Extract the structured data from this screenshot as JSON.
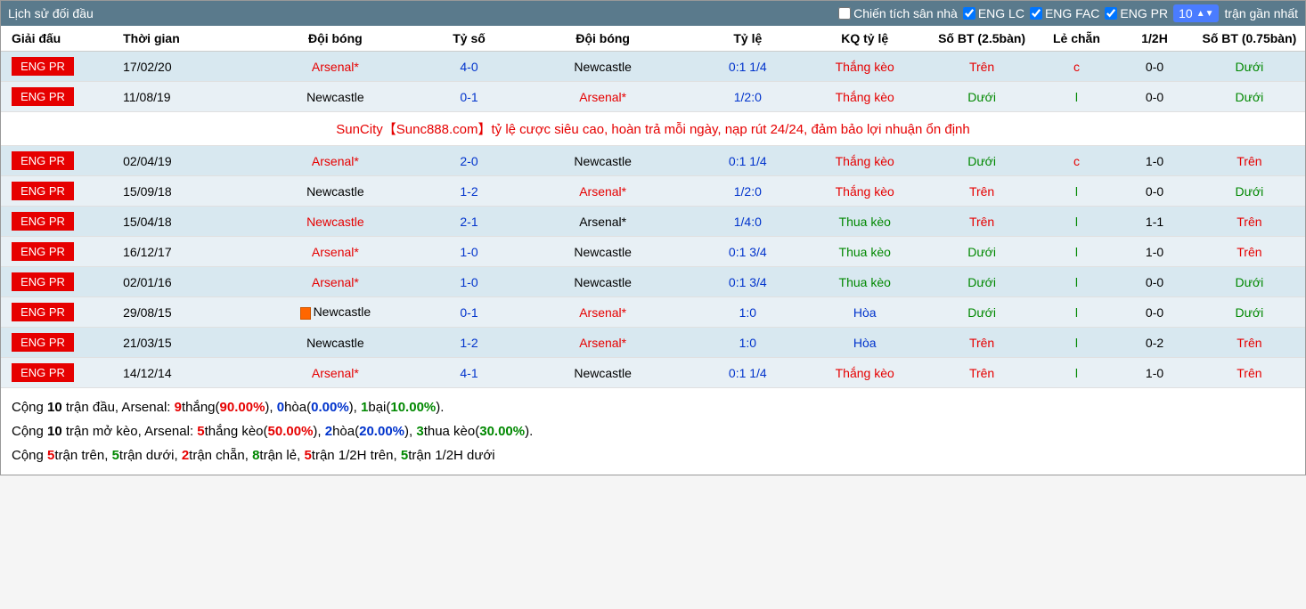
{
  "header": {
    "title": "Lịch sử đối đầu",
    "home_record": "Chiến tích sân nhà",
    "filters": [
      {
        "label": "ENG LC",
        "checked": true
      },
      {
        "label": "ENG FAC",
        "checked": true
      },
      {
        "label": "ENG PR",
        "checked": true
      }
    ],
    "count": "10",
    "count_suffix": "trận gần nhất"
  },
  "columns": [
    "Giải đấu",
    "Thời gian",
    "Đội bóng",
    "Tỷ số",
    "Đội bóng",
    "Tỷ lệ",
    "KQ tỷ lệ",
    "Số BT (2.5bàn)",
    "Lẻ chẵn",
    "1/2H",
    "Số BT (0.75bàn)"
  ],
  "promo": "SunCity【Sunc888.com】tỷ lệ cược siêu cao, hoàn trả mỗi ngày, nạp rút 24/24, đảm bảo lợi nhuận ổn định",
  "rows": [
    {
      "league": "ENG PR",
      "date": "17/02/20",
      "home": "Arsenal*",
      "home_color": "red",
      "score": "4-0",
      "score_color": "blue",
      "away": "Newcastle",
      "away_color": "black",
      "odds": "0:1 1/4",
      "odds_color": "blue",
      "result": "Thắng kèo",
      "result_color": "red",
      "ou25": "Trên",
      "ou25_color": "red",
      "oe": "c",
      "oe_color": "red",
      "half": "0-0",
      "ou075": "Dưới",
      "ou075_color": "green",
      "card": false,
      "cls": "odd"
    },
    {
      "league": "ENG PR",
      "date": "11/08/19",
      "home": "Newcastle",
      "home_color": "black",
      "score": "0-1",
      "score_color": "blue",
      "away": "Arsenal*",
      "away_color": "red",
      "odds": "1/2:0",
      "odds_color": "blue",
      "result": "Thắng kèo",
      "result_color": "red",
      "ou25": "Dưới",
      "ou25_color": "green",
      "oe": "l",
      "oe_color": "green",
      "half": "0-0",
      "ou075": "Dưới",
      "ou075_color": "green",
      "card": false,
      "cls": "even"
    },
    {
      "promo": true
    },
    {
      "league": "ENG PR",
      "date": "02/04/19",
      "home": "Arsenal*",
      "home_color": "red",
      "score": "2-0",
      "score_color": "blue",
      "away": "Newcastle",
      "away_color": "black",
      "odds": "0:1 1/4",
      "odds_color": "blue",
      "result": "Thắng kèo",
      "result_color": "red",
      "ou25": "Dưới",
      "ou25_color": "green",
      "oe": "c",
      "oe_color": "red",
      "half": "1-0",
      "ou075": "Trên",
      "ou075_color": "red",
      "card": false,
      "cls": "odd"
    },
    {
      "league": "ENG PR",
      "date": "15/09/18",
      "home": "Newcastle",
      "home_color": "black",
      "score": "1-2",
      "score_color": "blue",
      "away": "Arsenal*",
      "away_color": "red",
      "odds": "1/2:0",
      "odds_color": "blue",
      "result": "Thắng kèo",
      "result_color": "red",
      "ou25": "Trên",
      "ou25_color": "red",
      "oe": "l",
      "oe_color": "green",
      "half": "0-0",
      "ou075": "Dưới",
      "ou075_color": "green",
      "card": false,
      "cls": "even"
    },
    {
      "league": "ENG PR",
      "date": "15/04/18",
      "home": "Newcastle",
      "home_color": "red",
      "score": "2-1",
      "score_color": "blue",
      "away": "Arsenal*",
      "away_color": "black",
      "odds": "1/4:0",
      "odds_color": "blue",
      "result": "Thua kèo",
      "result_color": "green",
      "ou25": "Trên",
      "ou25_color": "red",
      "oe": "l",
      "oe_color": "green",
      "half": "1-1",
      "ou075": "Trên",
      "ou075_color": "red",
      "card": false,
      "cls": "odd"
    },
    {
      "league": "ENG PR",
      "date": "16/12/17",
      "home": "Arsenal*",
      "home_color": "red",
      "score": "1-0",
      "score_color": "blue",
      "away": "Newcastle",
      "away_color": "black",
      "odds": "0:1 3/4",
      "odds_color": "blue",
      "result": "Thua kèo",
      "result_color": "green",
      "ou25": "Dưới",
      "ou25_color": "green",
      "oe": "l",
      "oe_color": "green",
      "half": "1-0",
      "ou075": "Trên",
      "ou075_color": "red",
      "card": false,
      "cls": "even"
    },
    {
      "league": "ENG PR",
      "date": "02/01/16",
      "home": "Arsenal*",
      "home_color": "red",
      "score": "1-0",
      "score_color": "blue",
      "away": "Newcastle",
      "away_color": "black",
      "odds": "0:1 3/4",
      "odds_color": "blue",
      "result": "Thua kèo",
      "result_color": "green",
      "ou25": "Dưới",
      "ou25_color": "green",
      "oe": "l",
      "oe_color": "green",
      "half": "0-0",
      "ou075": "Dưới",
      "ou075_color": "green",
      "card": false,
      "cls": "odd"
    },
    {
      "league": "ENG PR",
      "date": "29/08/15",
      "home": "Newcastle",
      "home_color": "black",
      "score": "0-1",
      "score_color": "blue",
      "away": "Arsenal*",
      "away_color": "red",
      "odds": "1:0",
      "odds_color": "blue",
      "result": "Hòa",
      "result_color": "blue",
      "ou25": "Dưới",
      "ou25_color": "green",
      "oe": "l",
      "oe_color": "green",
      "half": "0-0",
      "ou075": "Dưới",
      "ou075_color": "green",
      "card": true,
      "cls": "even"
    },
    {
      "league": "ENG PR",
      "date": "21/03/15",
      "home": "Newcastle",
      "home_color": "black",
      "score": "1-2",
      "score_color": "blue",
      "away": "Arsenal*",
      "away_color": "red",
      "odds": "1:0",
      "odds_color": "blue",
      "result": "Hòa",
      "result_color": "blue",
      "ou25": "Trên",
      "ou25_color": "red",
      "oe": "l",
      "oe_color": "green",
      "half": "0-2",
      "ou075": "Trên",
      "ou075_color": "red",
      "card": false,
      "cls": "odd"
    },
    {
      "league": "ENG PR",
      "date": "14/12/14",
      "home": "Arsenal*",
      "home_color": "red",
      "score": "4-1",
      "score_color": "blue",
      "away": "Newcastle",
      "away_color": "black",
      "odds": "0:1 1/4",
      "odds_color": "blue",
      "result": "Thắng kèo",
      "result_color": "red",
      "ou25": "Trên",
      "ou25_color": "red",
      "oe": "l",
      "oe_color": "green",
      "half": "1-0",
      "ou075": "Trên",
      "ou075_color": "red",
      "card": false,
      "cls": "even"
    }
  ],
  "summary": {
    "line1": {
      "prefix": "Cộng ",
      "n1": "10",
      "t1": " trận đầu, Arsenal: ",
      "w": "9",
      "wt": "thắng(",
      "wp": "90.00%",
      "d": "0",
      "dt": "hòa(",
      "dp": "0.00%",
      "l": "1",
      "lt": "bại(",
      "lp": "10.00%",
      "close": ")."
    },
    "line2": {
      "prefix": "Cộng ",
      "n1": "10",
      "t1": " trận mở kèo, Arsenal: ",
      "w": "5",
      "wt": "thắng kèo(",
      "wp": "50.00%",
      "d": "2",
      "dt": "hòa(",
      "dp": "20.00%",
      "l": "3",
      "lt": "thua kèo(",
      "lp": "30.00%",
      "close": ")."
    },
    "line3": {
      "prefix": "Cộng ",
      "a": "5",
      "at": "trận trên, ",
      "b": "5",
      "bt": "trận dưới, ",
      "c": "2",
      "ct": "trận chẵn, ",
      "d": "8",
      "dt": "trận lẻ, ",
      "e": "5",
      "et": "trận 1/2H trên, ",
      "f": "5",
      "ft": "trận 1/2H dưới"
    }
  }
}
